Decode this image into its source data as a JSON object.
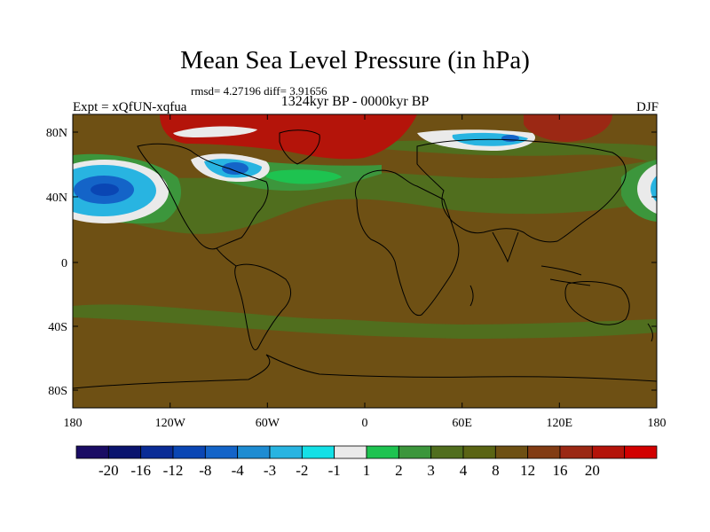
{
  "title": "Mean Sea Level Pressure (in hPa)",
  "stats": "rmsd= 4.27196 diff= 3.91656",
  "subtitle": "1324kyr BP - 0000kyr BP",
  "experiment": "Expt = xQfUN-xqfua",
  "season": "DJF",
  "y_ticks": [
    "80N",
    "40N",
    "0",
    "40S",
    "80S"
  ],
  "x_ticks": [
    "180",
    "120W",
    "60W",
    "0",
    "60E",
    "120E",
    "180"
  ],
  "colorbar": {
    "colors": [
      "#1a0c64",
      "#0a146e",
      "#0a2c96",
      "#0a46b4",
      "#1464c8",
      "#1e8cd2",
      "#28b4e1",
      "#14e0e6",
      "#eaeaea",
      "#1ec350",
      "#3c963c",
      "#506e1e",
      "#5a6414",
      "#6e5014",
      "#823c14",
      "#9b2814",
      "#b4140a",
      "#d20000"
    ],
    "labels": [
      "-20",
      "-16",
      "-12",
      "-8",
      "-4",
      "-3",
      "-2",
      "-1",
      "1",
      "2",
      "3",
      "4",
      "8",
      "12",
      "16",
      "20"
    ]
  },
  "colors": {
    "background": "#6e5014",
    "green_band": "#506e1e",
    "light_green": "#3c963c",
    "bright_green": "#1ec350",
    "red": "#b4140a",
    "dark_red": "#9b2814",
    "white": "#eaeaea",
    "cyan": "#28b4e1",
    "blue": "#1464c8"
  }
}
